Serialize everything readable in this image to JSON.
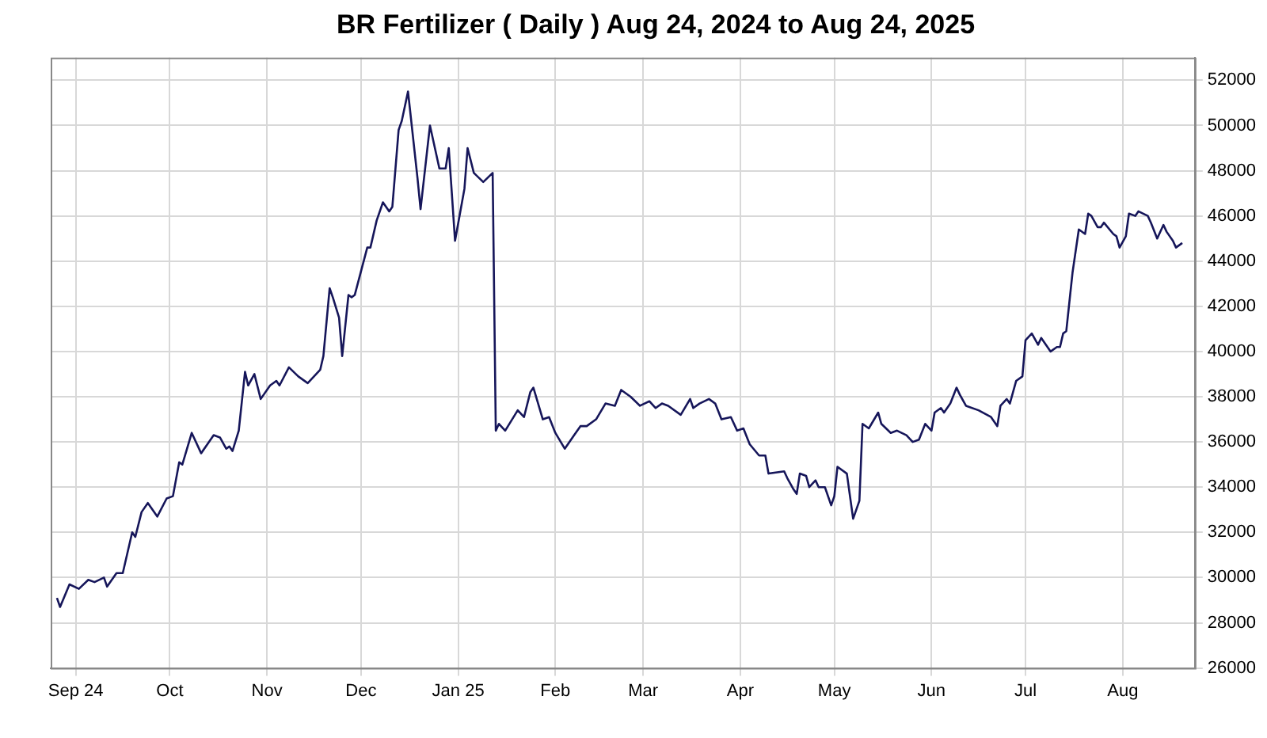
{
  "chart_data": {
    "type": "line",
    "title": "BR Fertilizer ( Daily ) Aug 24, 2024 to Aug 24, 2025",
    "x": [
      "2024-08-26",
      "2024-08-27",
      "2024-08-30",
      "2024-09-02",
      "2024-09-05",
      "2024-09-07",
      "2024-09-10",
      "2024-09-11",
      "2024-09-14",
      "2024-09-16",
      "2024-09-19",
      "2024-09-20",
      "2024-09-22",
      "2024-09-24",
      "2024-09-27",
      "2024-09-30",
      "2024-10-02",
      "2024-10-04",
      "2024-10-05",
      "2024-10-08",
      "2024-10-11",
      "2024-10-13",
      "2024-10-15",
      "2024-10-17",
      "2024-10-19",
      "2024-10-20",
      "2024-10-21",
      "2024-10-23",
      "2024-10-25",
      "2024-10-26",
      "2024-10-28",
      "2024-10-30",
      "2024-11-02",
      "2024-11-04",
      "2024-11-05",
      "2024-11-08",
      "2024-11-11",
      "2024-11-14",
      "2024-11-18",
      "2024-11-19",
      "2024-11-21",
      "2024-11-22",
      "2024-11-24",
      "2024-11-25",
      "2024-11-27",
      "2024-11-28",
      "2024-11-29",
      "2024-12-03",
      "2024-12-04",
      "2024-12-06",
      "2024-12-08",
      "2024-12-10",
      "2024-12-11",
      "2024-12-13",
      "2024-12-14",
      "2024-12-16",
      "2024-12-19",
      "2024-12-20",
      "2024-12-23",
      "2024-12-26",
      "2024-12-28",
      "2024-12-29",
      "2024-12-31",
      "2025-01-03",
      "2025-01-04",
      "2025-01-06",
      "2025-01-09",
      "2025-01-12",
      "2025-01-13",
      "2025-01-14",
      "2025-01-16",
      "2025-01-20",
      "2025-01-22",
      "2025-01-24",
      "2025-01-25",
      "2025-01-28",
      "2025-01-30",
      "2025-02-01",
      "2025-02-04",
      "2025-02-07",
      "2025-02-09",
      "2025-02-11",
      "2025-02-14",
      "2025-02-17",
      "2025-02-20",
      "2025-02-22",
      "2025-02-25",
      "2025-02-28",
      "2025-03-03",
      "2025-03-05",
      "2025-03-07",
      "2025-03-09",
      "2025-03-13",
      "2025-03-16",
      "2025-03-17",
      "2025-03-19",
      "2025-03-22",
      "2025-03-24",
      "2025-03-26",
      "2025-03-29",
      "2025-03-31",
      "2025-04-02",
      "2025-04-04",
      "2025-04-07",
      "2025-04-09",
      "2025-04-10",
      "2025-04-15",
      "2025-04-16",
      "2025-04-18",
      "2025-04-19",
      "2025-04-20",
      "2025-04-22",
      "2025-04-23",
      "2025-04-25",
      "2025-04-26",
      "2025-04-28",
      "2025-04-30",
      "2025-05-01",
      "2025-05-02",
      "2025-05-05",
      "2025-05-07",
      "2025-05-09",
      "2025-05-10",
      "2025-05-12",
      "2025-05-15",
      "2025-05-16",
      "2025-05-19",
      "2025-05-21",
      "2025-05-24",
      "2025-05-26",
      "2025-05-28",
      "2025-05-30",
      "2025-06-01",
      "2025-06-02",
      "2025-06-04",
      "2025-06-05",
      "2025-06-07",
      "2025-06-09",
      "2025-06-10",
      "2025-06-12",
      "2025-06-16",
      "2025-06-20",
      "2025-06-22",
      "2025-06-23",
      "2025-06-25",
      "2025-06-26",
      "2025-06-28",
      "2025-06-30",
      "2025-07-01",
      "2025-07-03",
      "2025-07-05",
      "2025-07-06",
      "2025-07-09",
      "2025-07-11",
      "2025-07-12",
      "2025-07-13",
      "2025-07-14",
      "2025-07-16",
      "2025-07-18",
      "2025-07-20",
      "2025-07-21",
      "2025-07-22",
      "2025-07-24",
      "2025-07-25",
      "2025-07-26",
      "2025-07-29",
      "2025-07-30",
      "2025-07-31",
      "2025-08-02",
      "2025-08-03",
      "2025-08-05",
      "2025-08-06",
      "2025-08-09",
      "2025-08-10",
      "2025-08-12",
      "2025-08-14",
      "2025-08-15",
      "2025-08-17",
      "2025-08-18",
      "2025-08-20"
    ],
    "series": [
      {
        "color": "#16165a",
        "values": [
          29100,
          28700,
          29700,
          29500,
          29900,
          29800,
          30000,
          29600,
          30200,
          30200,
          32000,
          31800,
          32900,
          33300,
          32700,
          33500,
          33600,
          35100,
          35000,
          36400,
          35500,
          35900,
          36300,
          36200,
          35700,
          35800,
          35600,
          36500,
          39100,
          38500,
          39000,
          37900,
          38500,
          38700,
          38500,
          39300,
          38900,
          38600,
          39200,
          39800,
          42800,
          42400,
          41500,
          39800,
          42500,
          42400,
          42500,
          44600,
          44600,
          45800,
          46600,
          46200,
          46400,
          49800,
          50200,
          51500,
          47700,
          46300,
          50000,
          48100,
          48100,
          49000,
          44900,
          47200,
          49000,
          47900,
          47500,
          47900,
          36500,
          36800,
          36500,
          37400,
          37100,
          38200,
          38400,
          37000,
          37100,
          36400,
          35700,
          36300,
          36700,
          36700,
          37000,
          37700,
          37600,
          38300,
          38000,
          37600,
          37800,
          37500,
          37700,
          37600,
          37200,
          37900,
          37500,
          37700,
          37900,
          37700,
          37000,
          37100,
          36500,
          36600,
          35900,
          35400,
          35400,
          34600,
          34700,
          34400,
          33900,
          33700,
          34600,
          34500,
          34000,
          34300,
          34000,
          34000,
          33200,
          33600,
          34900,
          34600,
          32600,
          33400,
          36800,
          36600,
          37300,
          36800,
          36400,
          36500,
          36300,
          36000,
          36100,
          36800,
          36500,
          37300,
          37500,
          37300,
          37700,
          38400,
          38100,
          37600,
          37400,
          37100,
          36700,
          37600,
          37900,
          37700,
          38700,
          38900,
          40500,
          40800,
          40300,
          40600,
          40000,
          40200,
          40200,
          40800,
          40900,
          43500,
          45400,
          45200,
          46100,
          46000,
          45500,
          45500,
          45700,
          45200,
          45100,
          44600,
          45100,
          46100,
          46000,
          46200,
          46000,
          45700,
          45000,
          45600,
          45300,
          44900,
          44600,
          44800
        ]
      }
    ],
    "xlim": [
      "2024-08-24",
      "2025-08-24"
    ],
    "xticks": [
      {
        "value": "2024-09-01",
        "label": "Sep 24"
      },
      {
        "value": "2024-10-01",
        "label": "Oct"
      },
      {
        "value": "2024-11-01",
        "label": "Nov"
      },
      {
        "value": "2024-12-01",
        "label": "Dec"
      },
      {
        "value": "2025-01-01",
        "label": "Jan 25"
      },
      {
        "value": "2025-02-01",
        "label": "Feb"
      },
      {
        "value": "2025-03-01",
        "label": "Mar"
      },
      {
        "value": "2025-04-01",
        "label": "Apr"
      },
      {
        "value": "2025-05-01",
        "label": "May"
      },
      {
        "value": "2025-06-01",
        "label": "Jun"
      },
      {
        "value": "2025-07-01",
        "label": "Jul"
      },
      {
        "value": "2025-08-01",
        "label": "Aug"
      }
    ],
    "ylim": [
      26000,
      53000
    ],
    "yticks": [
      26000,
      28000,
      30000,
      32000,
      34000,
      36000,
      38000,
      40000,
      42000,
      44000,
      46000,
      48000,
      50000,
      52000
    ],
    "grid": true,
    "marker": "none",
    "line_style": "solid"
  }
}
